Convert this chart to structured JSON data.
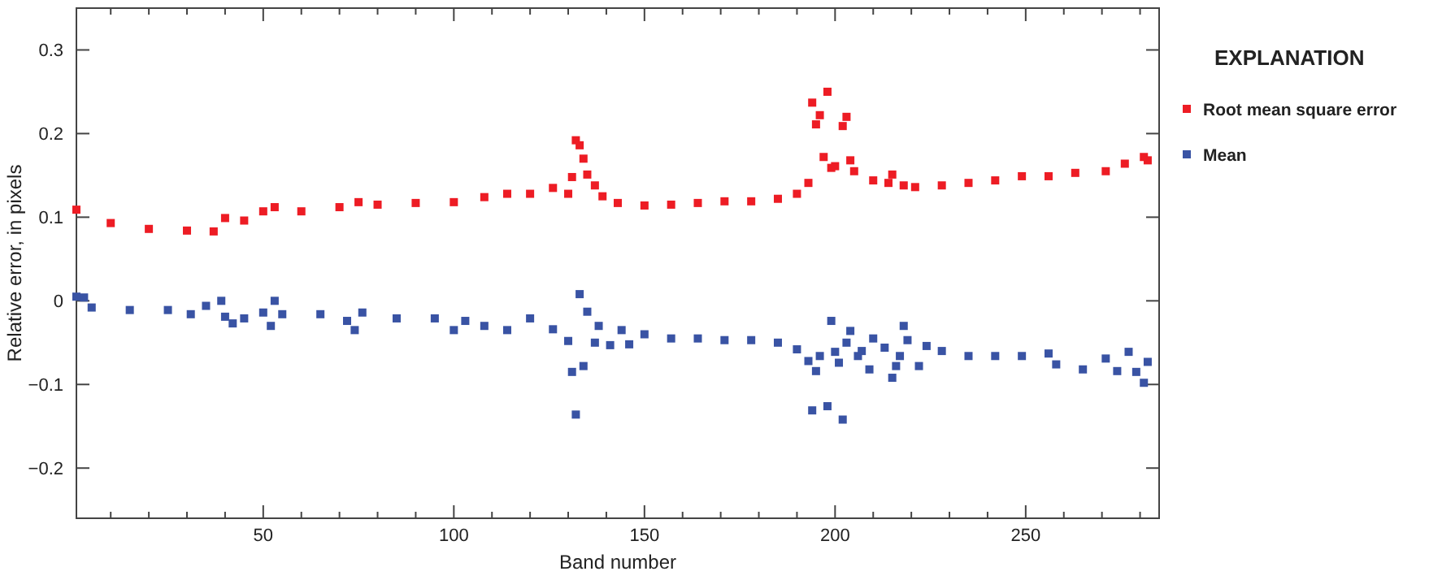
{
  "chart_data": {
    "type": "scatter",
    "xlabel": "Band number",
    "ylabel": "Relative error, in pixels",
    "legend_title": "EXPLANATION",
    "legend": "right",
    "marker": "square",
    "grid": false,
    "xlim": [
      1,
      285
    ],
    "ylim": [
      -0.26,
      0.35
    ],
    "xticks": [
      {
        "value": 10,
        "label": null
      },
      {
        "value": 20,
        "label": null
      },
      {
        "value": 30,
        "label": null
      },
      {
        "value": 40,
        "label": null
      },
      50,
      {
        "value": 60,
        "label": null
      },
      {
        "value": 70,
        "label": null
      },
      {
        "value": 80,
        "label": null
      },
      {
        "value": 90,
        "label": null
      },
      100,
      {
        "value": 110,
        "label": null
      },
      {
        "value": 120,
        "label": null
      },
      {
        "value": 130,
        "label": null
      },
      {
        "value": 140,
        "label": null
      },
      150,
      {
        "value": 160,
        "label": null
      },
      {
        "value": 170,
        "label": null
      },
      {
        "value": 180,
        "label": null
      },
      {
        "value": 190,
        "label": null
      },
      200,
      {
        "value": 210,
        "label": null
      },
      {
        "value": 220,
        "label": null
      },
      {
        "value": 230,
        "label": null
      },
      {
        "value": 240,
        "label": null
      },
      250,
      {
        "value": 260,
        "label": null
      },
      {
        "value": 270,
        "label": null
      },
      {
        "value": 280,
        "label": null
      }
    ],
    "yticks": [
      {
        "value": -0.2,
        "label": "−0.2"
      },
      {
        "value": -0.1,
        "label": "−0.1"
      },
      0,
      0.1,
      0.2,
      0.3
    ],
    "series": [
      {
        "name": "Root mean square error",
        "color": "#ed1c24",
        "x": [
          1,
          10,
          20,
          30,
          37,
          40,
          45,
          50,
          53,
          60,
          70,
          75,
          80,
          90,
          100,
          108,
          114,
          120,
          126,
          130,
          131,
          132,
          133,
          134,
          135,
          137,
          139,
          143,
          150,
          157,
          164,
          171,
          178,
          185,
          190,
          193,
          194,
          195,
          196,
          197,
          198,
          199,
          200,
          202,
          203,
          204,
          205,
          210,
          214,
          215,
          218,
          221,
          228,
          235,
          242,
          249,
          256,
          263,
          271,
          276,
          281,
          282
        ],
        "values": [
          0.109,
          0.093,
          0.086,
          0.084,
          0.083,
          0.099,
          0.096,
          0.107,
          0.112,
          0.107,
          0.112,
          0.118,
          0.115,
          0.117,
          0.118,
          0.124,
          0.128,
          0.128,
          0.135,
          0.128,
          0.148,
          0.192,
          0.186,
          0.17,
          0.151,
          0.138,
          0.125,
          0.117,
          0.114,
          0.115,
          0.117,
          0.119,
          0.119,
          0.122,
          0.128,
          0.141,
          0.237,
          0.211,
          0.222,
          0.172,
          0.25,
          0.159,
          0.161,
          0.209,
          0.22,
          0.168,
          0.155,
          0.144,
          0.141,
          0.151,
          0.138,
          0.136,
          0.138,
          0.141,
          0.144,
          0.149,
          0.149,
          0.153,
          0.155,
          0.164,
          0.172,
          0.168
        ]
      },
      {
        "name": "Mean",
        "color": "#3953a4",
        "x": [
          1,
          3,
          5,
          15,
          25,
          31,
          35,
          39,
          40,
          42,
          45,
          50,
          52,
          53,
          55,
          65,
          72,
          74,
          76,
          85,
          95,
          100,
          103,
          108,
          114,
          120,
          126,
          130,
          131,
          132,
          133,
          134,
          135,
          137,
          138,
          141,
          144,
          146,
          150,
          157,
          164,
          171,
          178,
          185,
          190,
          193,
          194,
          195,
          196,
          198,
          199,
          200,
          201,
          202,
          203,
          204,
          206,
          207,
          209,
          210,
          213,
          215,
          216,
          217,
          218,
          219,
          222,
          224,
          228,
          235,
          242,
          249,
          256,
          258,
          265,
          271,
          274,
          277,
          279,
          281,
          282
        ],
        "values": [
          0.005,
          0.004,
          -0.008,
          -0.011,
          -0.011,
          -0.016,
          -0.006,
          0.0,
          -0.019,
          -0.027,
          -0.021,
          -0.014,
          -0.03,
          0.0,
          -0.016,
          -0.016,
          -0.024,
          -0.035,
          -0.014,
          -0.021,
          -0.021,
          -0.035,
          -0.024,
          -0.03,
          -0.035,
          -0.021,
          -0.034,
          -0.048,
          -0.085,
          -0.136,
          0.008,
          -0.078,
          -0.013,
          -0.05,
          -0.03,
          -0.053,
          -0.035,
          -0.052,
          -0.04,
          -0.045,
          -0.045,
          -0.047,
          -0.047,
          -0.05,
          -0.058,
          -0.072,
          -0.131,
          -0.084,
          -0.066,
          -0.126,
          -0.024,
          -0.061,
          -0.074,
          -0.142,
          -0.05,
          -0.036,
          -0.066,
          -0.06,
          -0.082,
          -0.045,
          -0.056,
          -0.092,
          -0.078,
          -0.066,
          -0.03,
          -0.047,
          -0.078,
          -0.054,
          -0.06,
          -0.066,
          -0.066,
          -0.066,
          -0.063,
          -0.076,
          -0.082,
          -0.069,
          -0.084,
          -0.061,
          -0.085,
          -0.098,
          -0.073
        ]
      }
    ]
  }
}
